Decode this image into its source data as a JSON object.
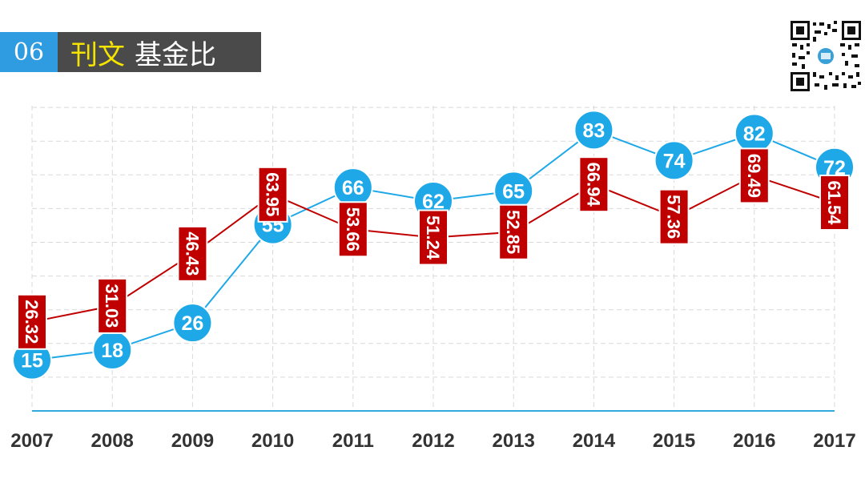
{
  "header": {
    "number": "06",
    "title_highlight": "刊文",
    "title_rest": "基金比"
  },
  "colors": {
    "title_number_bg": "#2f9be0",
    "title_bg": "#4a4a4a",
    "title_highlight": "#f5e400",
    "blue_series": "#1ea8e8",
    "red_series": "#c00000",
    "axis": "#33aadd",
    "grid": "#d9d9d9"
  },
  "qr_icon": "qr-code-icon",
  "chart_data": {
    "type": "line",
    "x": [
      "2007",
      "2008",
      "2009",
      "2010",
      "2011",
      "2012",
      "2013",
      "2014",
      "2015",
      "2016",
      "2017"
    ],
    "series": [
      {
        "values": [
          15,
          18,
          26,
          55,
          66,
          62,
          65,
          83,
          74,
          82,
          72
        ]
      },
      {
        "values": [
          26.32,
          31.03,
          46.43,
          63.95,
          53.66,
          51.24,
          52.85,
          66.94,
          57.36,
          69.49,
          61.54
        ]
      }
    ],
    "title": "",
    "xlabel": "",
    "ylabel": "",
    "ylim": [
      0,
      100
    ],
    "grid": true,
    "data_labels": true
  }
}
